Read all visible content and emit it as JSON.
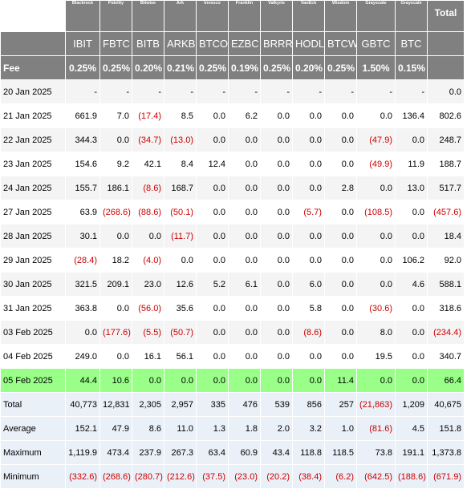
{
  "header": {
    "issuers": [
      "Blackrock",
      "Fidelity",
      "Bitwise",
      "Ark",
      "Invesco",
      "Franklin",
      "Valkyrie",
      "VanEck",
      "Wisdom",
      "Grayscale",
      "Grayscale"
    ],
    "total_label": "Total",
    "tickers": [
      "IBIT",
      "FBTC",
      "BITB",
      "ARKB",
      "BTCO",
      "EZBC",
      "BRRR",
      "HODL",
      "BTCW",
      "GBTC",
      "BTC"
    ],
    "fee_label": "Fee",
    "fees": [
      "0.25%",
      "0.25%",
      "0.20%",
      "0.21%",
      "0.25%",
      "0.19%",
      "0.25%",
      "0.20%",
      "0.25%",
      "1.50%",
      "0.15%"
    ]
  },
  "rows": [
    {
      "date": "20 Jan 2025",
      "values": [
        "-",
        "-",
        "-",
        "-",
        "-",
        "-",
        "-",
        "-",
        "-",
        "-",
        "-"
      ],
      "total": "0.0"
    },
    {
      "date": "21 Jan 2025",
      "values": [
        "661.9",
        "7.0",
        "(17.4)",
        "8.5",
        "0.0",
        "6.2",
        "0.0",
        "0.0",
        "0.0",
        "0.0",
        "136.4"
      ],
      "total": "802.6"
    },
    {
      "date": "22 Jan 2025",
      "values": [
        "344.3",
        "0.0",
        "(34.7)",
        "(13.0)",
        "0.0",
        "0.0",
        "0.0",
        "0.0",
        "0.0",
        "(47.9)",
        "0.0"
      ],
      "total": "248.7"
    },
    {
      "date": "23 Jan 2025",
      "values": [
        "154.6",
        "9.2",
        "42.1",
        "8.4",
        "12.4",
        "0.0",
        "0.0",
        "0.0",
        "0.0",
        "(49.9)",
        "11.9"
      ],
      "total": "188.7"
    },
    {
      "date": "24 Jan 2025",
      "values": [
        "155.7",
        "186.1",
        "(8.6)",
        "168.7",
        "0.0",
        "0.0",
        "0.0",
        "0.0",
        "2.8",
        "0.0",
        "13.0"
      ],
      "total": "517.7"
    },
    {
      "date": "27 Jan 2025",
      "values": [
        "63.9",
        "(268.6)",
        "(88.6)",
        "(50.1)",
        "0.0",
        "0.0",
        "0.0",
        "(5.7)",
        "0.0",
        "(108.5)",
        "0.0"
      ],
      "total": "(457.6)"
    },
    {
      "date": "28 Jan 2025",
      "values": [
        "30.1",
        "0.0",
        "0.0",
        "(11.7)",
        "0.0",
        "0.0",
        "0.0",
        "0.0",
        "0.0",
        "0.0",
        "0.0"
      ],
      "total": "18.4"
    },
    {
      "date": "29 Jan 2025",
      "values": [
        "(28.4)",
        "18.2",
        "(4.0)",
        "0.0",
        "0.0",
        "0.0",
        "0.0",
        "0.0",
        "0.0",
        "0.0",
        "106.2"
      ],
      "total": "92.0"
    },
    {
      "date": "30 Jan 2025",
      "values": [
        "321.5",
        "209.1",
        "23.0",
        "12.6",
        "5.2",
        "6.1",
        "0.0",
        "6.0",
        "0.0",
        "0.0",
        "4.6"
      ],
      "total": "588.1"
    },
    {
      "date": "31 Jan 2025",
      "values": [
        "363.8",
        "0.0",
        "(56.0)",
        "35.6",
        "0.0",
        "0.0",
        "0.0",
        "5.8",
        "0.0",
        "(30.6)",
        "0.0"
      ],
      "total": "318.6"
    },
    {
      "date": "03 Feb 2025",
      "values": [
        "0.0",
        "(177.6)",
        "(5.5)",
        "(50.7)",
        "0.0",
        "0.0",
        "0.0",
        "(8.6)",
        "0.0",
        "8.0",
        "0.0"
      ],
      "total": "(234.4)"
    },
    {
      "date": "04 Feb 2025",
      "values": [
        "249.0",
        "0.0",
        "16.1",
        "56.1",
        "0.0",
        "0.0",
        "0.0",
        "0.0",
        "0.0",
        "19.5",
        "0.0"
      ],
      "total": "340.7"
    },
    {
      "date": "05 Feb 2025",
      "values": [
        "44.4",
        "10.6",
        "0.0",
        "0.0",
        "0.0",
        "0.0",
        "0.0",
        "0.0",
        "11.4",
        "0.0",
        "0.0"
      ],
      "total": "66.4",
      "highlight": true
    }
  ],
  "stats": [
    {
      "label": "Total",
      "values": [
        "40,773",
        "12,831",
        "2,305",
        "2,957",
        "335",
        "476",
        "539",
        "856",
        "257",
        "(21,863)",
        "1,209"
      ],
      "total": "40,675"
    },
    {
      "label": "Average",
      "values": [
        "152.1",
        "47.9",
        "8.6",
        "11.0",
        "1.3",
        "1.8",
        "2.0",
        "3.2",
        "1.0",
        "(81.6)",
        "4.5"
      ],
      "total": "151.8"
    },
    {
      "label": "Maximum",
      "values": [
        "1,119.9",
        "473.4",
        "237.9",
        "267.3",
        "63.4",
        "60.9",
        "43.4",
        "118.8",
        "118.5",
        "73.8",
        "191.1"
      ],
      "total": "1,373.8"
    },
    {
      "label": "Minimum",
      "values": [
        "(332.6)",
        "(268.6)",
        "(280.7)",
        "(212.6)",
        "(37.5)",
        "(23.0)",
        "(20.2)",
        "(38.4)",
        "(6.2)",
        "(642.5)",
        "(188.6)"
      ],
      "total": "(671.9)"
    }
  ]
}
